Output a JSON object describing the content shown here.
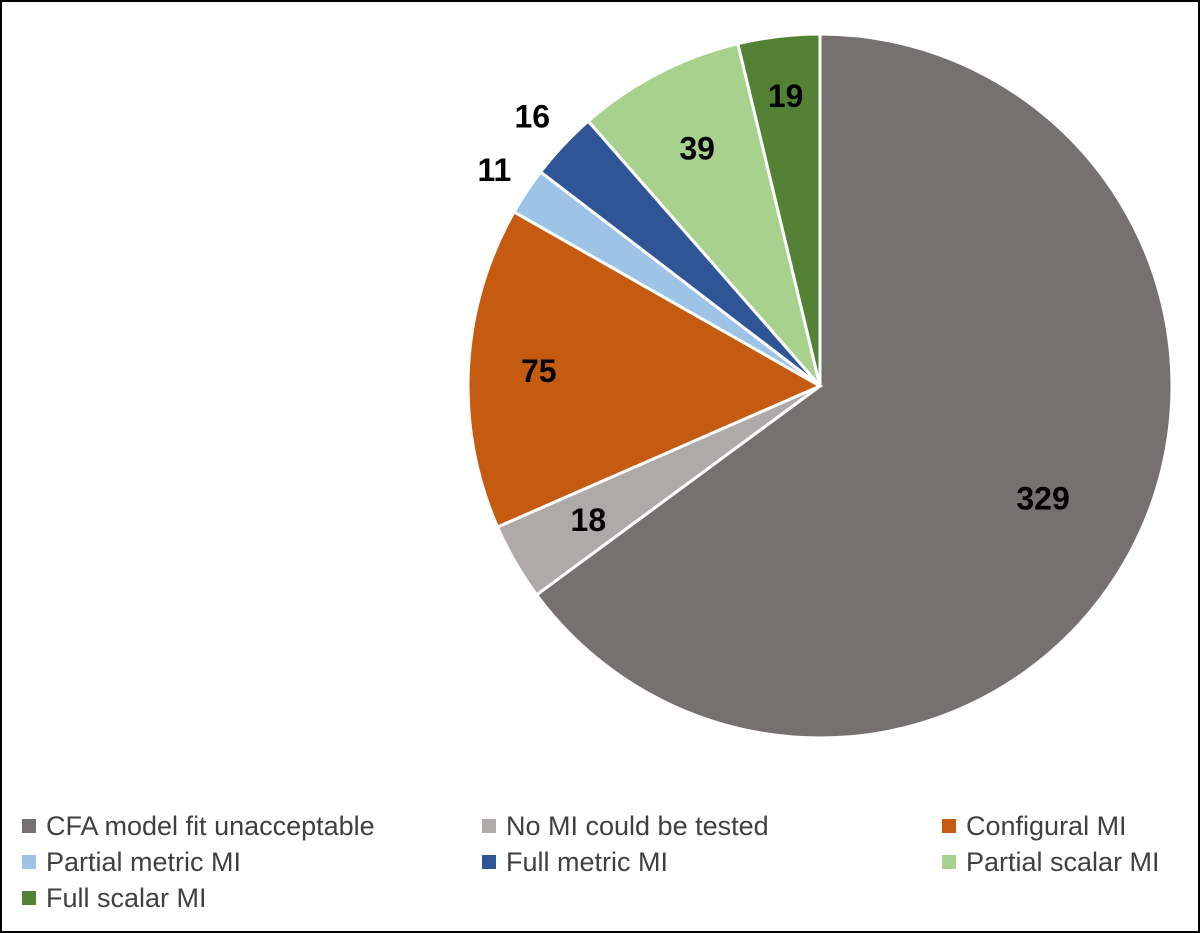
{
  "chart_data": {
    "type": "pie",
    "slices": [
      {
        "label": "CFA model fit unacceptable",
        "value": 329,
        "display": "329",
        "color": "#767171"
      },
      {
        "label": "No MI could be tested",
        "value": 18,
        "display": "18",
        "color": "#AEAAAA"
      },
      {
        "label": "Configural MI",
        "value": 75,
        "display": "75",
        "color": "#C55A11"
      },
      {
        "label": "Partial metric MI",
        "value": 11,
        "display": "11",
        "color": "#9DC3E6"
      },
      {
        "label": "Full metric MI",
        "value": 16,
        "display": "16",
        "color": "#2F5597"
      },
      {
        "label": "Partial scalar MI",
        "value": 39,
        "display": "39",
        "color": "#A9D18E"
      },
      {
        "label": "Full scalar MI",
        "value": 19,
        "display": "19",
        "color": "#548235"
      }
    ],
    "start_angle_deg": 0,
    "direction": "clockwise",
    "legend_position": "bottom"
  }
}
